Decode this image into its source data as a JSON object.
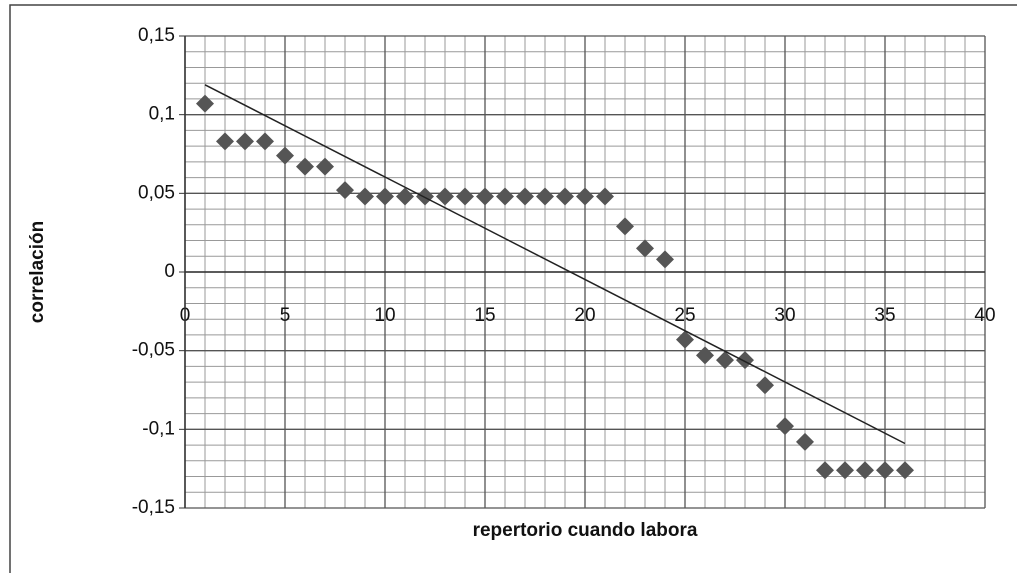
{
  "chart_data": {
    "type": "scatter",
    "xlabel": "repertorio cuando labora",
    "ylabel": "correlación",
    "x": [
      1,
      2,
      3,
      4,
      5,
      6,
      7,
      8,
      9,
      10,
      11,
      12,
      13,
      14,
      15,
      16,
      17,
      18,
      19,
      20,
      21,
      22,
      23,
      24,
      25,
      26,
      27,
      28,
      29,
      30,
      31,
      32,
      33,
      34,
      35,
      36
    ],
    "values": [
      0.107,
      0.083,
      0.083,
      0.083,
      0.074,
      0.067,
      0.067,
      0.052,
      0.048,
      0.048,
      0.048,
      0.048,
      0.048,
      0.048,
      0.048,
      0.048,
      0.048,
      0.048,
      0.048,
      0.048,
      0.048,
      0.029,
      0.015,
      0.008,
      -0.043,
      -0.053,
      -0.056,
      -0.056,
      -0.072,
      -0.098,
      -0.108,
      -0.126,
      -0.126,
      -0.126,
      -0.126,
      -0.126
    ],
    "color": "#555555",
    "trendline": {
      "x": [
        1,
        36
      ],
      "values": [
        0.119,
        -0.109
      ],
      "color": "#222222"
    },
    "xlim": [
      0,
      40
    ],
    "xticks": [
      0,
      5,
      10,
      15,
      20,
      25,
      30,
      35,
      40
    ],
    "ylim": [
      -0.15,
      0.15
    ],
    "yticks": [
      {
        "value": 0.15,
        "label": "0,15"
      },
      {
        "value": 0.1,
        "label": "0,1"
      },
      {
        "value": 0.05,
        "label": "0,05"
      },
      {
        "value": 0,
        "label": "0"
      },
      {
        "value": -0.05,
        "label": "-0,05"
      },
      {
        "value": -0.1,
        "label": "-0,1"
      },
      {
        "value": -0.15,
        "label": "-0,15"
      }
    ],
    "grid": true
  }
}
